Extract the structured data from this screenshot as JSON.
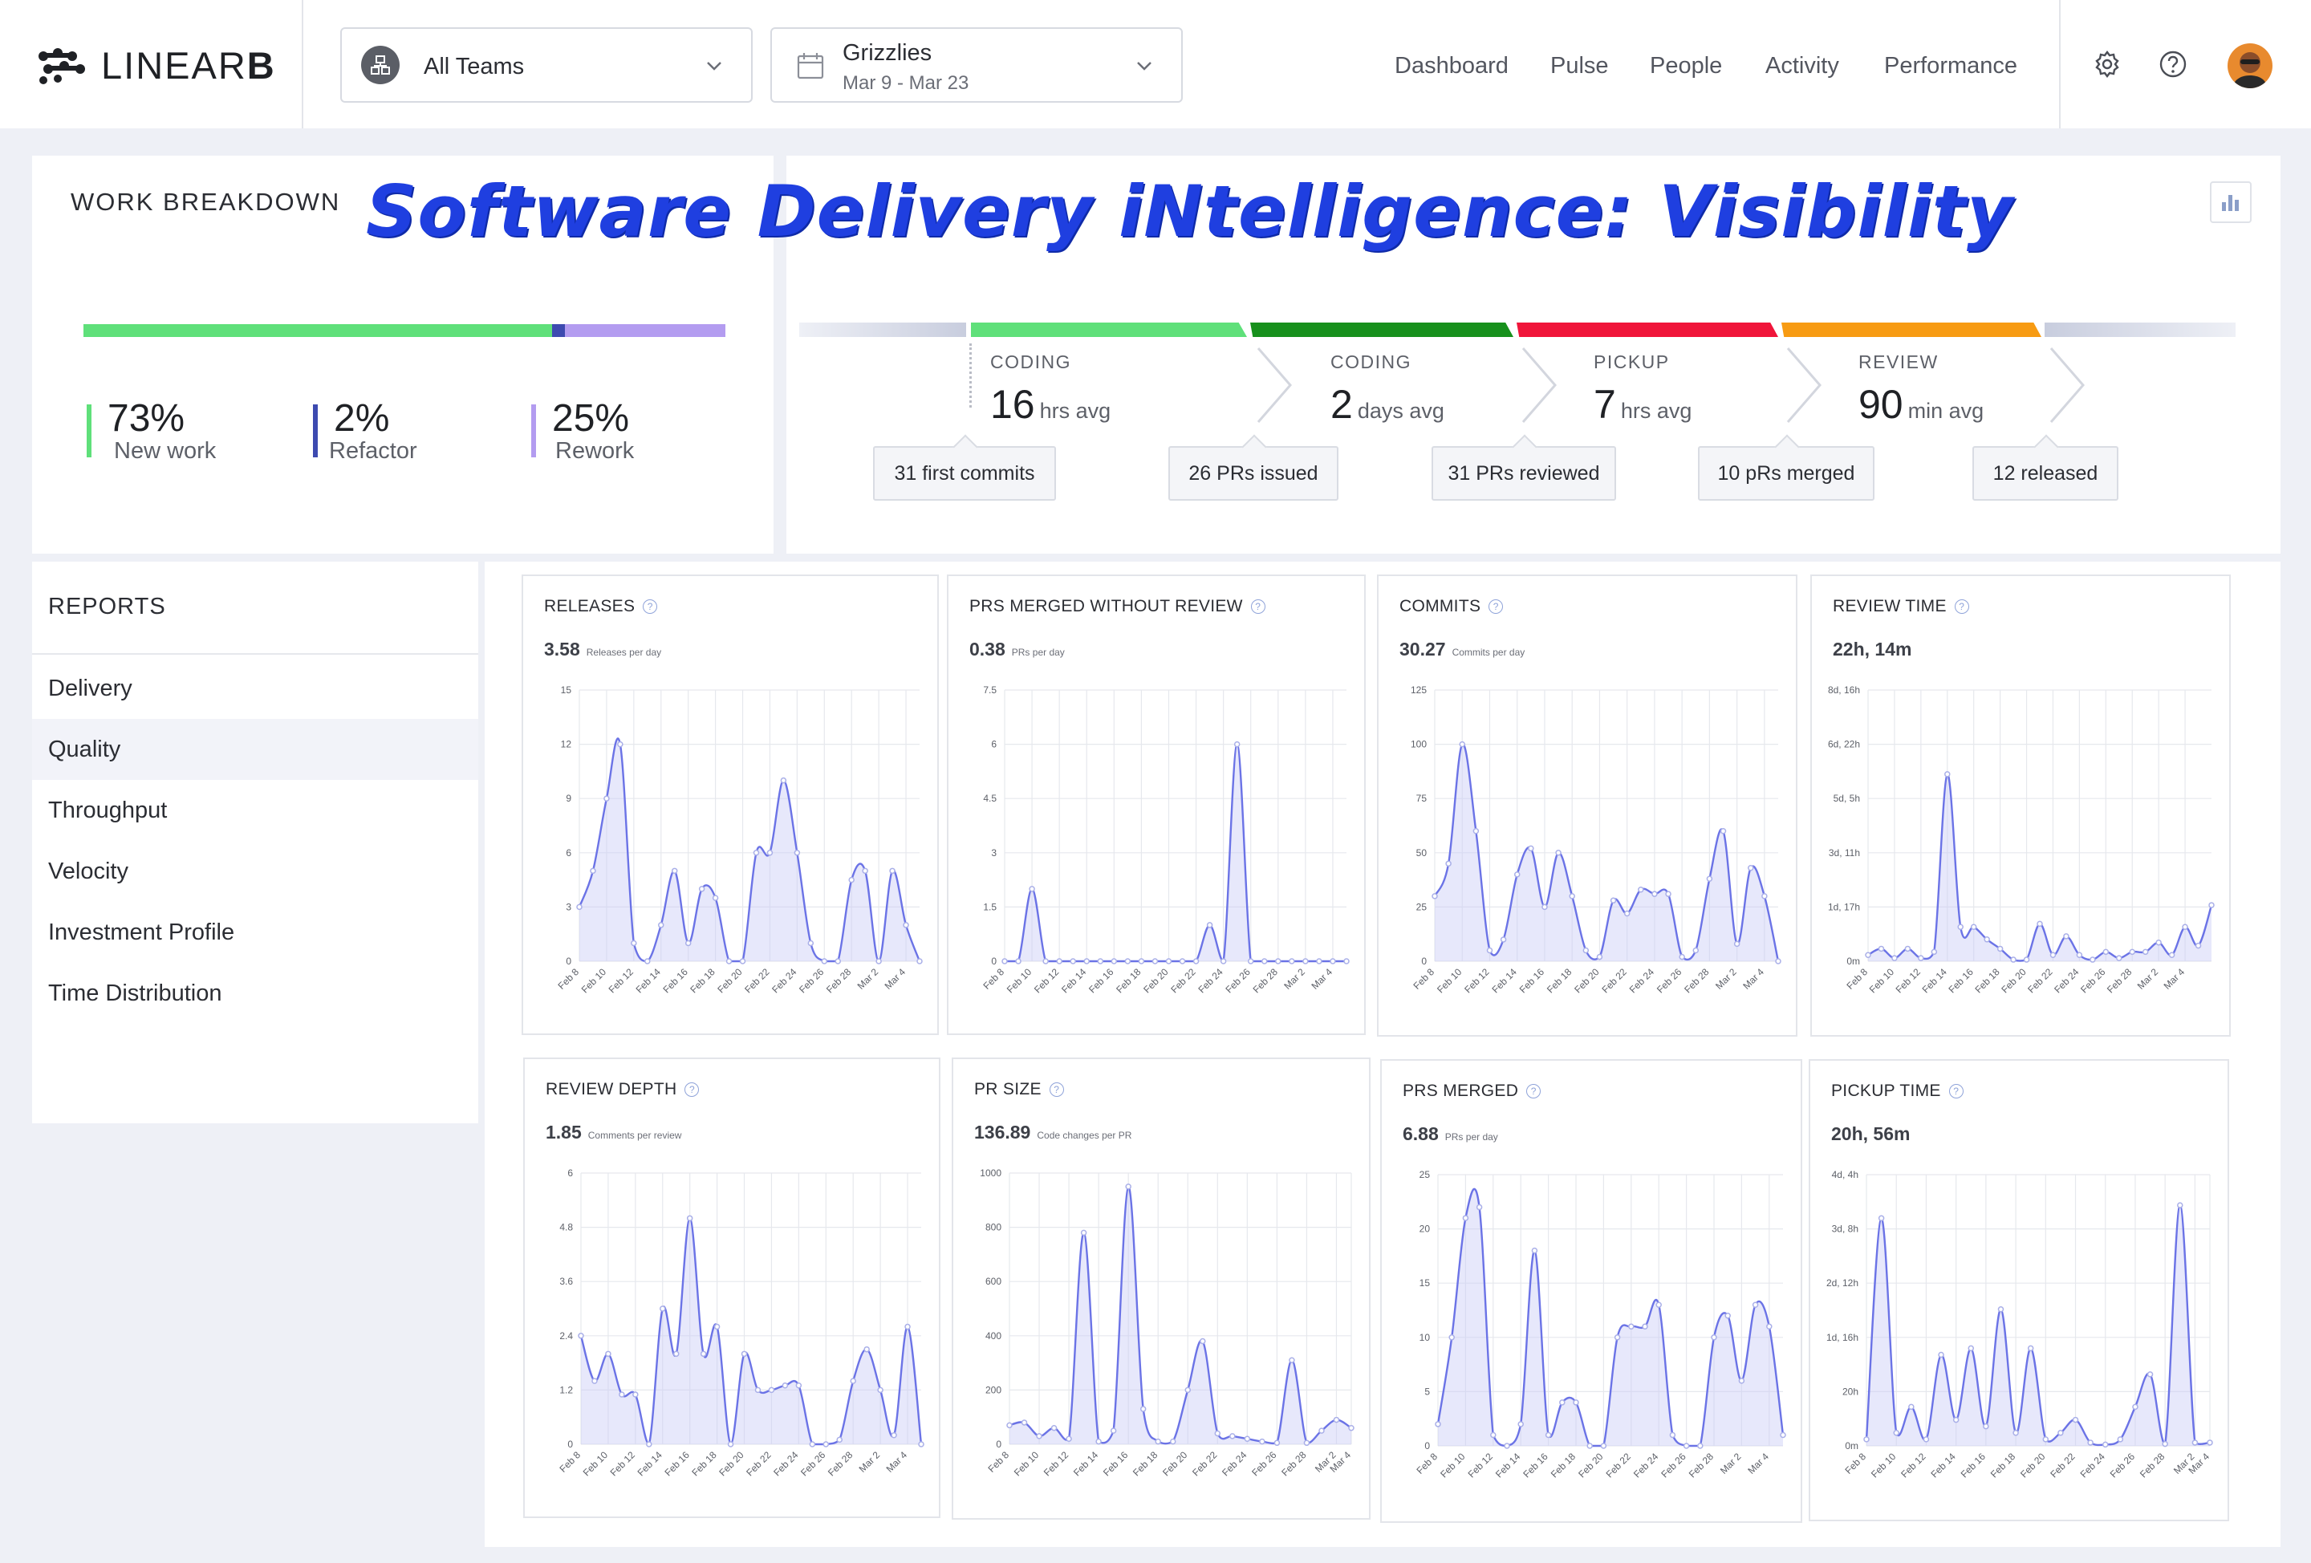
{
  "brand": {
    "name_light": "LINEAR",
    "name_bold": "B"
  },
  "teams": {
    "label": "All Teams"
  },
  "date": {
    "team": "Grizzlies",
    "range": "Mar 9 - Mar 23"
  },
  "nav": {
    "links": [
      "Dashboard",
      "Pulse",
      "People",
      "Activity",
      "Performance"
    ],
    "icons": [
      "gear-icon",
      "help-icon",
      "avatar"
    ]
  },
  "headline": "Software Delivery iNtelligence: Visibility",
  "work_breakdown": {
    "title": "WORK BREAKDOWN",
    "stats": [
      {
        "value": "73%",
        "label": "New work",
        "color": "#5fe07a",
        "fraction": 0.73
      },
      {
        "value": "2%",
        "label": "Refactor",
        "color": "#3d4ab0",
        "fraction": 0.02
      },
      {
        "value": "25%",
        "label": "Rework",
        "color": "#b39cf0",
        "fraction": 0.25
      }
    ]
  },
  "cycle": {
    "stages": [
      {
        "name": "CODING",
        "value": "16",
        "unit": "hrs avg",
        "color": "#5fe07a"
      },
      {
        "name": "CODING",
        "value": "2",
        "unit": "days avg",
        "color": "#17901c"
      },
      {
        "name": "PICKUP",
        "value": "7",
        "unit": "hrs avg",
        "color": "#f0153a"
      },
      {
        "name": "REVIEW",
        "value": "90",
        "unit": "min avg",
        "color": "#f79b13"
      }
    ],
    "callouts": [
      "31 first commits",
      "26 PRs issued",
      "31 PRs reviewed",
      "10 pRs merged",
      "12 released"
    ]
  },
  "reports": {
    "title": "REPORTS",
    "items": [
      "Delivery",
      "Quality",
      "Throughput",
      "Velocity",
      "Investment Profile",
      "Time Distribution"
    ],
    "active": "Quality"
  },
  "colors": {
    "line": "#6b73e6",
    "fill": "#c9cdf6",
    "grid": "#e6e8ed",
    "accent_headline": "#1f3fe0"
  },
  "chart_data": [
    {
      "type": "area",
      "title": "RELEASES",
      "metric": "3.58",
      "metric_unit": "Releases per day",
      "ylim": [
        0,
        15
      ],
      "yticks": [
        "0",
        "3",
        "6",
        "9",
        "12",
        "15"
      ],
      "xticks": [
        "Feb 8",
        "Feb 10",
        "Feb 12",
        "Feb 14",
        "Feb 16",
        "Feb 18",
        "Feb 20",
        "Feb 22",
        "Feb 24",
        "Feb 26",
        "Feb 28",
        "Mar 2",
        "Mar 4"
      ],
      "values": [
        3,
        5,
        9,
        12,
        1,
        0,
        2,
        5,
        1,
        4,
        3.5,
        0,
        0,
        6,
        6,
        10,
        6,
        1,
        0,
        0,
        4.5,
        5,
        0,
        5,
        2,
        0
      ]
    },
    {
      "type": "area",
      "title": "PRS MERGED WITHOUT REVIEW",
      "metric": "0.38",
      "metric_unit": "PRs per day",
      "ylim": [
        0,
        7.5
      ],
      "yticks": [
        "0",
        "1.5",
        "3",
        "4.5",
        "6",
        "7.5"
      ],
      "xticks": [
        "Feb 8",
        "Feb 10",
        "Feb 12",
        "Feb 14",
        "Feb 16",
        "Feb 18",
        "Feb 20",
        "Feb 22",
        "Feb 24",
        "Feb 26",
        "Feb 28",
        "Mar 2",
        "Mar 4"
      ],
      "values": [
        0,
        0,
        2,
        0,
        0,
        0,
        0,
        0,
        0,
        0,
        0,
        0,
        0,
        0,
        0,
        1,
        0,
        6,
        0,
        0,
        0,
        0,
        0,
        0,
        0,
        0
      ]
    },
    {
      "type": "area",
      "title": "COMMITS",
      "metric": "30.27",
      "metric_unit": "Commits per day",
      "ylim": [
        0,
        125
      ],
      "yticks": [
        "0",
        "25",
        "50",
        "75",
        "100",
        "125"
      ],
      "xticks": [
        "Feb 8",
        "Feb 10",
        "Feb 12",
        "Feb 14",
        "Feb 16",
        "Feb 18",
        "Feb 20",
        "Feb 22",
        "Feb 24",
        "Feb 26",
        "Feb 28",
        "Mar 2",
        "Mar 4"
      ],
      "values": [
        30,
        45,
        100,
        60,
        5,
        10,
        40,
        52,
        25,
        50,
        30,
        5,
        2,
        28,
        22,
        33,
        31,
        31,
        2,
        5,
        38,
        60,
        8,
        43,
        30,
        0
      ]
    },
    {
      "type": "area",
      "title": "REVIEW TIME",
      "metric": "22h, 14m",
      "metric_unit": "",
      "ylim": [
        0,
        8.7
      ],
      "yticks": [
        "0m",
        "1d, 17h",
        "3d, 11h",
        "5d, 5h",
        "6d, 22h",
        "8d, 16h"
      ],
      "xticks": [
        "Feb 8",
        "Feb 10",
        "Feb 12",
        "Feb 14",
        "Feb 16",
        "Feb 18",
        "Feb 20",
        "Feb 22",
        "Feb 24",
        "Feb 26",
        "Feb 28",
        "Mar 2",
        "Mar 4"
      ],
      "values": [
        0.2,
        0.4,
        0.1,
        0.4,
        0.1,
        0.3,
        6,
        1.1,
        1.1,
        0.7,
        0.4,
        0.05,
        0.05,
        1.2,
        0.2,
        0.8,
        0.2,
        0.05,
        0.3,
        0.1,
        0.3,
        0.3,
        0.6,
        0.2,
        1.1,
        0.5,
        1.8
      ]
    },
    {
      "type": "area",
      "title": "REVIEW DEPTH",
      "metric": "1.85",
      "metric_unit": "Comments per review",
      "ylim": [
        0,
        6
      ],
      "yticks": [
        "0",
        "1.2",
        "2.4",
        "3.6",
        "4.8",
        "6"
      ],
      "xticks": [
        "Feb 8",
        "Feb 10",
        "Feb 12",
        "Feb 14",
        "Feb 16",
        "Feb 18",
        "Feb 20",
        "Feb 22",
        "Feb 24",
        "Feb 26",
        "Feb 28",
        "Mar 2",
        "Mar 4"
      ],
      "values": [
        2.4,
        1.4,
        2,
        1.1,
        1.1,
        0,
        3,
        2,
        5,
        2,
        2.6,
        0,
        2,
        1.2,
        1.2,
        1.3,
        1.3,
        0,
        0,
        0.1,
        1.4,
        2.1,
        1.2,
        0.2,
        2.6,
        0
      ]
    },
    {
      "type": "area",
      "title": "PR SIZE",
      "metric": "136.89",
      "metric_unit": "Code changes per PR",
      "ylim": [
        0,
        1000
      ],
      "yticks": [
        "0",
        "200",
        "400",
        "600",
        "800",
        "1000"
      ],
      "xticks": [
        "Feb 8",
        "Feb 10",
        "Feb 12",
        "Feb 14",
        "Feb 16",
        "Feb 18",
        "Feb 20",
        "Feb 22",
        "Feb 24",
        "Feb 26",
        "Feb 28",
        "Mar 2",
        "Mar 4"
      ],
      "values": [
        70,
        80,
        30,
        60,
        20,
        780,
        10,
        50,
        950,
        130,
        10,
        10,
        200,
        380,
        40,
        30,
        20,
        10,
        5,
        310,
        5,
        50,
        90,
        60
      ]
    },
    {
      "type": "area",
      "title": "PRS MERGED",
      "metric": "6.88",
      "metric_unit": "PRs per day",
      "ylim": [
        0,
        25
      ],
      "yticks": [
        "0",
        "5",
        "10",
        "15",
        "20",
        "25"
      ],
      "xticks": [
        "Feb 8",
        "Feb 10",
        "Feb 12",
        "Feb 14",
        "Feb 16",
        "Feb 18",
        "Feb 20",
        "Feb 22",
        "Feb 24",
        "Feb 26",
        "Feb 28",
        "Mar 2",
        "Mar 4"
      ],
      "values": [
        2,
        10,
        21,
        22,
        1,
        0,
        2,
        18,
        1,
        4,
        4,
        0,
        0,
        10,
        11,
        11,
        13,
        1,
        0,
        0,
        10,
        12,
        6,
        13,
        11,
        1
      ]
    },
    {
      "type": "area",
      "title": "PICKUP TIME",
      "metric": "20h, 56m",
      "metric_unit": "",
      "ylim": [
        0,
        4.17
      ],
      "yticks": [
        "0m",
        "20h",
        "1d, 16h",
        "2d, 12h",
        "3d, 8h",
        "4d, 4h"
      ],
      "xticks": [
        "Feb 8",
        "Feb 10",
        "Feb 12",
        "Feb 14",
        "Feb 16",
        "Feb 18",
        "Feb 20",
        "Feb 22",
        "Feb 24",
        "Feb 26",
        "Feb 28",
        "Mar 2",
        "Mar 4"
      ],
      "values": [
        0.1,
        3.5,
        0.2,
        0.6,
        0.1,
        1.4,
        0.4,
        1.5,
        0.3,
        2.1,
        0.2,
        1.5,
        0.1,
        0.2,
        0.4,
        0.05,
        0.02,
        0.1,
        0.6,
        1.1,
        0.03,
        3.7,
        0.05,
        0.05
      ]
    }
  ]
}
